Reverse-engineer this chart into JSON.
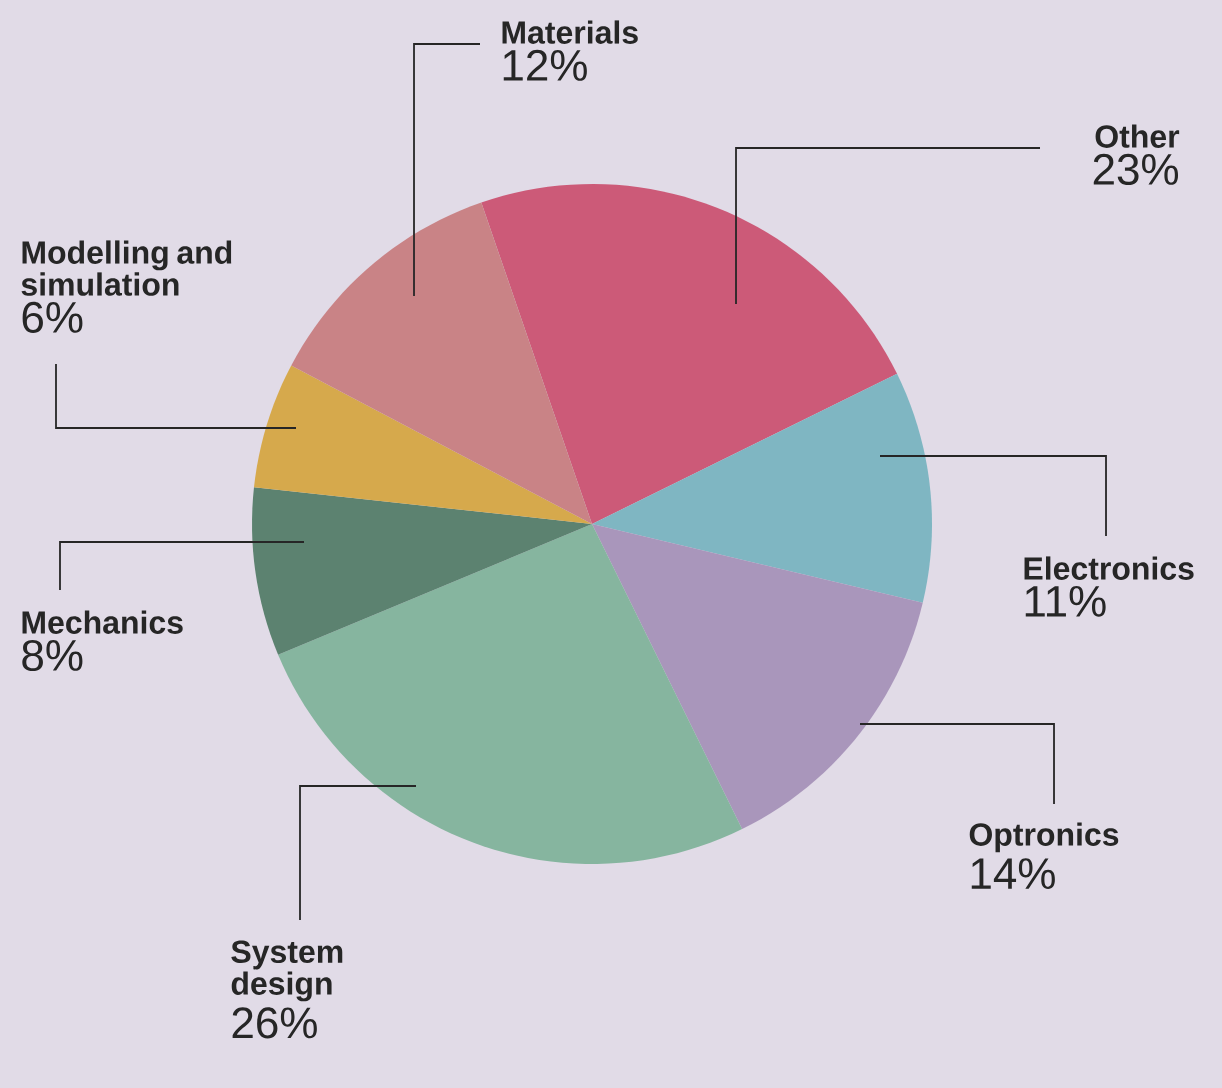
{
  "chart_data": {
    "type": "pie",
    "categories": [
      "Other",
      "Electronics",
      "Optronics",
      "System design",
      "Mechanics",
      "Modelling and simulation",
      "Materials"
    ],
    "values": [
      23,
      11,
      14,
      26,
      8,
      6,
      12
    ],
    "colors": [
      "#cc5a78",
      "#7fb6c2",
      "#a996bb",
      "#86b59f",
      "#5c8270",
      "#d6a94c",
      "#c98386"
    ],
    "value_labels": [
      "23%",
      "11%",
      "14%",
      "26%",
      "8%",
      "6%",
      "12%"
    ]
  }
}
